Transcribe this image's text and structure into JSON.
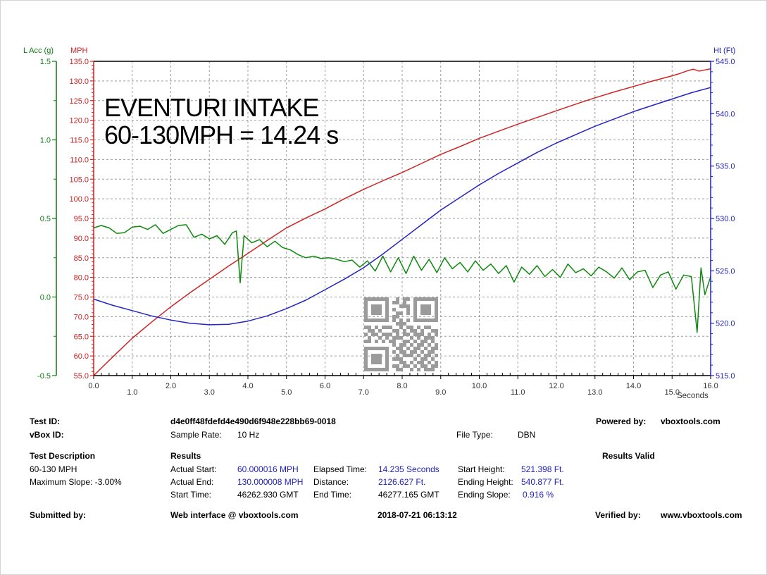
{
  "chart_data": {
    "type": "line",
    "title": "",
    "annotation": {
      "line1": "EVENTURI INTAKE",
      "line2": "60-130MPH = 14.24 s"
    },
    "x_axis": {
      "label": "Seconds",
      "min": 0,
      "max": 16,
      "major_step": 1,
      "minor_step": 0.2
    },
    "y_axes": [
      {
        "id": "acc",
        "label": "L Acc (g)",
        "min": -0.5,
        "max": 1.5,
        "major_step": 0.5,
        "minor_step": 0.25,
        "color": "#0d7a0d",
        "side": "far-left"
      },
      {
        "id": "mph",
        "label": "MPH",
        "min": 55,
        "max": 135,
        "major_step": 5,
        "minor_step": 1,
        "color": "#cc2020",
        "side": "left"
      },
      {
        "id": "ht",
        "label": "Ht (Ft)",
        "min": 515,
        "max": 545,
        "major_step": 5,
        "minor_step": 1,
        "color": "#2222bb",
        "side": "right"
      }
    ],
    "grid": {
      "color": "#9c9c9c",
      "dash": "3,3"
    },
    "series": [
      {
        "name": "Speed (MPH)",
        "axis": "mph",
        "color": "#cf2424",
        "points": [
          [
            0,
            55
          ],
          [
            0.5,
            59.8
          ],
          [
            1,
            64.5
          ],
          [
            1.5,
            68.6
          ],
          [
            2,
            72.5
          ],
          [
            2.5,
            76.1
          ],
          [
            3,
            79.5
          ],
          [
            3.5,
            82.9
          ],
          [
            4,
            86.1
          ],
          [
            4.5,
            89.4
          ],
          [
            5,
            92.6
          ],
          [
            5.5,
            95.1
          ],
          [
            6,
            97.4
          ],
          [
            6.5,
            100
          ],
          [
            7,
            102.4
          ],
          [
            7.5,
            104.6
          ],
          [
            8,
            106.7
          ],
          [
            8.5,
            109
          ],
          [
            9,
            111.3
          ],
          [
            9.5,
            113.3
          ],
          [
            10,
            115.4
          ],
          [
            10.5,
            117.2
          ],
          [
            11,
            119
          ],
          [
            11.5,
            120.7
          ],
          [
            12,
            122.4
          ],
          [
            12.5,
            124.1
          ],
          [
            13,
            125.7
          ],
          [
            13.5,
            127.2
          ],
          [
            14,
            128.6
          ],
          [
            14.5,
            130
          ],
          [
            15,
            131.3
          ],
          [
            15.2,
            131.9
          ],
          [
            15.4,
            132.6
          ],
          [
            15.55,
            133
          ],
          [
            15.7,
            132.5
          ],
          [
            15.85,
            132.8
          ],
          [
            16,
            133.1
          ]
        ]
      },
      {
        "name": "Height (Ft)",
        "axis": "ht",
        "color": "#2424c4",
        "points": [
          [
            0,
            522.3
          ],
          [
            0.5,
            521.7
          ],
          [
            1,
            521.2
          ],
          [
            1.5,
            520.7
          ],
          [
            2,
            520.3
          ],
          [
            2.5,
            520
          ],
          [
            3,
            519.85
          ],
          [
            3.5,
            519.9
          ],
          [
            4,
            520.2
          ],
          [
            4.5,
            520.7
          ],
          [
            5,
            521.4
          ],
          [
            5.5,
            522.2
          ],
          [
            6,
            523.2
          ],
          [
            6.5,
            524.2
          ],
          [
            7,
            525.3
          ],
          [
            7.5,
            526.6
          ],
          [
            8,
            528
          ],
          [
            8.5,
            529.4
          ],
          [
            9,
            530.8
          ],
          [
            9.5,
            532
          ],
          [
            10,
            533.2
          ],
          [
            10.5,
            534.3
          ],
          [
            11,
            535.3
          ],
          [
            11.5,
            536.3
          ],
          [
            12,
            537.2
          ],
          [
            12.5,
            538
          ],
          [
            13,
            538.8
          ],
          [
            13.5,
            539.5
          ],
          [
            14,
            540.2
          ],
          [
            14.5,
            540.8
          ],
          [
            15,
            541.4
          ],
          [
            15.5,
            542
          ],
          [
            16,
            542.5
          ]
        ]
      },
      {
        "name": "Longitudinal Accel (g)",
        "axis": "acc",
        "color": "#0d8a0d",
        "points": [
          [
            0,
            0.44
          ],
          [
            0.2,
            0.455
          ],
          [
            0.4,
            0.44
          ],
          [
            0.6,
            0.405
          ],
          [
            0.8,
            0.41
          ],
          [
            1,
            0.445
          ],
          [
            1.2,
            0.45
          ],
          [
            1.4,
            0.43
          ],
          [
            1.6,
            0.46
          ],
          [
            1.8,
            0.405
          ],
          [
            2,
            0.43
          ],
          [
            2.2,
            0.455
          ],
          [
            2.4,
            0.46
          ],
          [
            2.6,
            0.38
          ],
          [
            2.8,
            0.4
          ],
          [
            3,
            0.37
          ],
          [
            3.2,
            0.39
          ],
          [
            3.4,
            0.335
          ],
          [
            3.6,
            0.41
          ],
          [
            3.7,
            0.42
          ],
          [
            3.8,
            0.09
          ],
          [
            3.9,
            0.39
          ],
          [
            4.1,
            0.345
          ],
          [
            4.3,
            0.365
          ],
          [
            4.5,
            0.32
          ],
          [
            4.7,
            0.355
          ],
          [
            4.9,
            0.315
          ],
          [
            5.1,
            0.3
          ],
          [
            5.3,
            0.27
          ],
          [
            5.5,
            0.25
          ],
          [
            5.7,
            0.26
          ],
          [
            5.9,
            0.245
          ],
          [
            6.1,
            0.25
          ],
          [
            6.3,
            0.24
          ],
          [
            6.5,
            0.225
          ],
          [
            6.7,
            0.235
          ],
          [
            6.9,
            0.19
          ],
          [
            7.1,
            0.23
          ],
          [
            7.3,
            0.165
          ],
          [
            7.5,
            0.26
          ],
          [
            7.7,
            0.16
          ],
          [
            7.9,
            0.25
          ],
          [
            8.1,
            0.15
          ],
          [
            8.3,
            0.26
          ],
          [
            8.5,
            0.17
          ],
          [
            8.7,
            0.24
          ],
          [
            8.9,
            0.155
          ],
          [
            9.1,
            0.25
          ],
          [
            9.3,
            0.18
          ],
          [
            9.5,
            0.22
          ],
          [
            9.7,
            0.16
          ],
          [
            9.9,
            0.23
          ],
          [
            10.1,
            0.17
          ],
          [
            10.3,
            0.21
          ],
          [
            10.5,
            0.15
          ],
          [
            10.7,
            0.2
          ],
          [
            10.9,
            0.095
          ],
          [
            11.1,
            0.19
          ],
          [
            11.3,
            0.145
          ],
          [
            11.5,
            0.2
          ],
          [
            11.7,
            0.13
          ],
          [
            11.9,
            0.175
          ],
          [
            12.1,
            0.125
          ],
          [
            12.3,
            0.21
          ],
          [
            12.5,
            0.155
          ],
          [
            12.7,
            0.18
          ],
          [
            12.9,
            0.135
          ],
          [
            13.1,
            0.19
          ],
          [
            13.3,
            0.16
          ],
          [
            13.5,
            0.12
          ],
          [
            13.7,
            0.185
          ],
          [
            13.9,
            0.11
          ],
          [
            14.1,
            0.16
          ],
          [
            14.3,
            0.17
          ],
          [
            14.5,
            0.06
          ],
          [
            14.7,
            0.14
          ],
          [
            14.9,
            0.16
          ],
          [
            15.1,
            0.05
          ],
          [
            15.3,
            0.14
          ],
          [
            15.5,
            0.13
          ],
          [
            15.65,
            -0.225
          ],
          [
            15.75,
            0.185
          ],
          [
            15.85,
            0.015
          ],
          [
            16,
            0.13
          ]
        ]
      }
    ],
    "watermark_qr": {
      "color": "#9b9b9b",
      "pattern": [
        "111111100101101111111",
        "100000101101001000001",
        "101110100011101011101",
        "101110101000101011101",
        "101110100110101011101",
        "100000101100001000001",
        "111111101010101111111",
        "000000000111000000000",
        "110101110010110101100",
        "011010001101011010011",
        "101101110101101110101",
        "010010101110010101110",
        "110101011001101011010",
        "000000001011010110101",
        "111111100110101101011",
        "100000101011011010110",
        "101110100101110101101",
        "101110101110001011010",
        "101110100011010110101",
        "100000101101101011011",
        "111111100110010101110"
      ]
    }
  },
  "info": {
    "test_id": {
      "label": "Test ID:",
      "value": "d4e0ff48fdefd4e490d6f948e228bb69-0018"
    },
    "vbox_id": {
      "label": "vBox ID:",
      "value": ""
    },
    "sample_rate": {
      "label": "Sample Rate:",
      "value": "10 Hz"
    },
    "file_type": {
      "label": "File Type:",
      "value": "DBN"
    },
    "powered_by": {
      "label": "Powered by:",
      "value": "vboxtools.com"
    },
    "test_description": {
      "header": "Test Description",
      "line1": "60-130 MPH",
      "line2": "Maximum Slope:  -3.00%"
    },
    "results": {
      "header": "Results",
      "valid": "Results Valid",
      "actual_start": {
        "label": "Actual Start:",
        "value": "60.000016 MPH"
      },
      "actual_end": {
        "label": "Actual End:",
        "value": "130.000008 MPH"
      },
      "start_time": {
        "label": "Start Time:",
        "value": "46262.930 GMT"
      },
      "elapsed_time": {
        "label": "Elapsed Time:",
        "value": "14.235 Seconds"
      },
      "distance": {
        "label": "Distance:",
        "value": "2126.627 Ft."
      },
      "end_time": {
        "label": "End Time:",
        "value": "46277.165 GMT"
      },
      "start_height": {
        "label": "Start Height:",
        "value": "521.398 Ft."
      },
      "ending_height": {
        "label": "Ending Height:",
        "value": "540.877 Ft."
      },
      "ending_slope": {
        "label": "Ending Slope:",
        "value": "0.916 %"
      }
    },
    "footer": {
      "submitted_by": {
        "label": "Submitted by:",
        "value": "Web interface @ vboxtools.com"
      },
      "timestamp": "2018-07-21 06:13:12",
      "verified_by": {
        "label": "Verified by:",
        "value": "www.vboxtools.com"
      }
    }
  }
}
